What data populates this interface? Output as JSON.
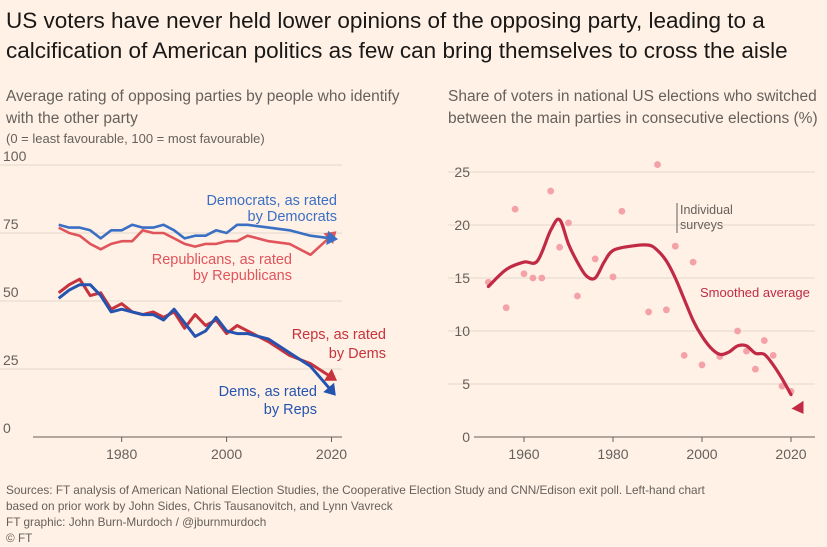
{
  "headline": "US voters have never held lower opinions of the opposing party, leading to a calcification of American politics as few can bring themselves to cross the aisle",
  "colors": {
    "background": "#fff1e5",
    "dem_blue": "#3a6fc4",
    "rep_red": "#e0545c",
    "reps_by_dems": "#c8323c",
    "dems_by_reps": "#2554b0",
    "dot_pink": "#f4a1a8",
    "smoothed": "#c02a45"
  },
  "left_subtitle": {
    "line1": "Average rating of opposing parties by people who identify with the other party",
    "line2": "(0 = least favourable, 100 = most favourable)"
  },
  "right_subtitle": {
    "text": "Share of voters in national US elections who switched between the main parties in consecutive elections (%)"
  },
  "labels": {
    "dem_by_dem": [
      "Democrats, as rated",
      "by Democrats"
    ],
    "rep_by_rep": [
      "Republicans, as rated",
      "by Republicans"
    ],
    "reps_by_dems": [
      "Reps, as rated",
      "by Dems"
    ],
    "dems_by_reps": [
      "Dems, as rated",
      "by Reps"
    ],
    "individual": [
      "Individual",
      "surveys"
    ],
    "smoothed": "Smoothed average"
  },
  "footer": {
    "line1": "Sources: FT analysis of American National Election Studies, the Cooperative Election Study and CNN/Edison exit poll. Left-hand chart",
    "line2": "based on prior work by John Sides, Chris Tausanovitch, and Lynn Vavreck",
    "line3": "FT graphic: John Burn-Murdoch / @jburnmurdoch",
    "line4": "© FT"
  },
  "chart_data": [
    {
      "type": "line",
      "xlim": [
        1965,
        2022
      ],
      "ylim": [
        0,
        100
      ],
      "yticks": [
        0,
        25,
        50,
        75,
        100
      ],
      "xticks": [
        1980,
        2000,
        2020
      ],
      "series": [
        {
          "name": "Democrats, as rated by Democrats",
          "x": [
            1968,
            1970,
            1972,
            1974,
            1976,
            1978,
            1980,
            1982,
            1984,
            1986,
            1988,
            1990,
            1992,
            1994,
            1996,
            1998,
            2000,
            2002,
            2004,
            2008,
            2012,
            2016,
            2020
          ],
          "values": [
            78,
            77,
            77,
            76,
            73,
            76,
            76,
            78,
            77,
            77,
            78,
            76,
            73,
            74,
            74,
            76,
            75,
            78,
            78,
            77,
            76,
            74,
            73
          ]
        },
        {
          "name": "Republicans, as rated by Republicans",
          "x": [
            1968,
            1970,
            1972,
            1974,
            1976,
            1978,
            1980,
            1982,
            1984,
            1986,
            1988,
            1990,
            1992,
            1994,
            1996,
            1998,
            2000,
            2002,
            2004,
            2008,
            2012,
            2016,
            2020
          ],
          "values": [
            77,
            75,
            74,
            71,
            69,
            71,
            72,
            72,
            76,
            75,
            75,
            73,
            71,
            70,
            71,
            71,
            72,
            72,
            74,
            72,
            71,
            67,
            74
          ]
        },
        {
          "name": "Reps, as rated by Dems",
          "x": [
            1968,
            1970,
            1972,
            1974,
            1976,
            1978,
            1980,
            1982,
            1984,
            1986,
            1988,
            1990,
            1992,
            1994,
            1996,
            1998,
            2000,
            2002,
            2004,
            2008,
            2012,
            2016,
            2020
          ],
          "values": [
            53,
            56,
            58,
            52,
            53,
            47,
            49,
            46,
            45,
            46,
            44,
            46,
            40,
            45,
            41,
            43,
            38,
            41,
            39,
            35,
            30,
            27,
            22
          ]
        },
        {
          "name": "Dems, as rated by Reps",
          "x": [
            1968,
            1970,
            1972,
            1974,
            1976,
            1978,
            1980,
            1982,
            1984,
            1986,
            1988,
            1990,
            1992,
            1994,
            1996,
            1998,
            2000,
            2002,
            2004,
            2008,
            2012,
            2016,
            2020
          ],
          "values": [
            51,
            54,
            56,
            56,
            52,
            46,
            47,
            46,
            45,
            45,
            43,
            47,
            42,
            37,
            39,
            44,
            39,
            38,
            38,
            36,
            31,
            26,
            17
          ]
        }
      ]
    },
    {
      "type": "scatter",
      "xlim": [
        1948,
        2023
      ],
      "ylim": [
        0,
        27
      ],
      "yticks": [
        0,
        5,
        10,
        15,
        20,
        25
      ],
      "xticks": [
        1960,
        1980,
        2000,
        2020
      ],
      "series": [
        {
          "name": "Individual surveys",
          "x": [
            1952,
            1956,
            1958,
            1960,
            1962,
            1964,
            1966,
            1968,
            1970,
            1972,
            1976,
            1980,
            1982,
            1988,
            1990,
            1992,
            1994,
            1996,
            1998,
            2000,
            2004,
            2008,
            2010,
            2012,
            2014,
            2016,
            2018,
            2020
          ],
          "values": [
            14.6,
            12.2,
            21.5,
            15.4,
            15.0,
            15.0,
            23.2,
            17.9,
            20.2,
            13.3,
            16.8,
            15.1,
            21.3,
            11.8,
            25.7,
            12.0,
            18.0,
            7.7,
            16.5,
            6.8,
            7.6,
            10.0,
            8.1,
            6.4,
            9.1,
            7.7,
            4.8,
            4.3
          ]
        },
        {
          "name": "Smoothed average",
          "x": [
            1952,
            1956,
            1960,
            1963,
            1966,
            1968,
            1970,
            1972,
            1974,
            1976,
            1978,
            1980,
            1984,
            1988,
            1990,
            1992,
            1994,
            1996,
            1998,
            2000,
            2002,
            2004,
            2006,
            2008,
            2010,
            2012,
            2014,
            2016,
            2018,
            2020,
            2022
          ],
          "values": [
            14.2,
            15.8,
            16.5,
            16.6,
            19.5,
            20.5,
            18.2,
            16.5,
            15.2,
            15.0,
            16.5,
            17.6,
            18.0,
            18.1,
            17.6,
            16.6,
            15.0,
            13.0,
            11.0,
            9.5,
            8.4,
            7.8,
            8.0,
            8.6,
            8.6,
            7.9,
            7.8,
            6.8,
            5.5,
            4.0,
            2.7
          ]
        }
      ]
    }
  ]
}
